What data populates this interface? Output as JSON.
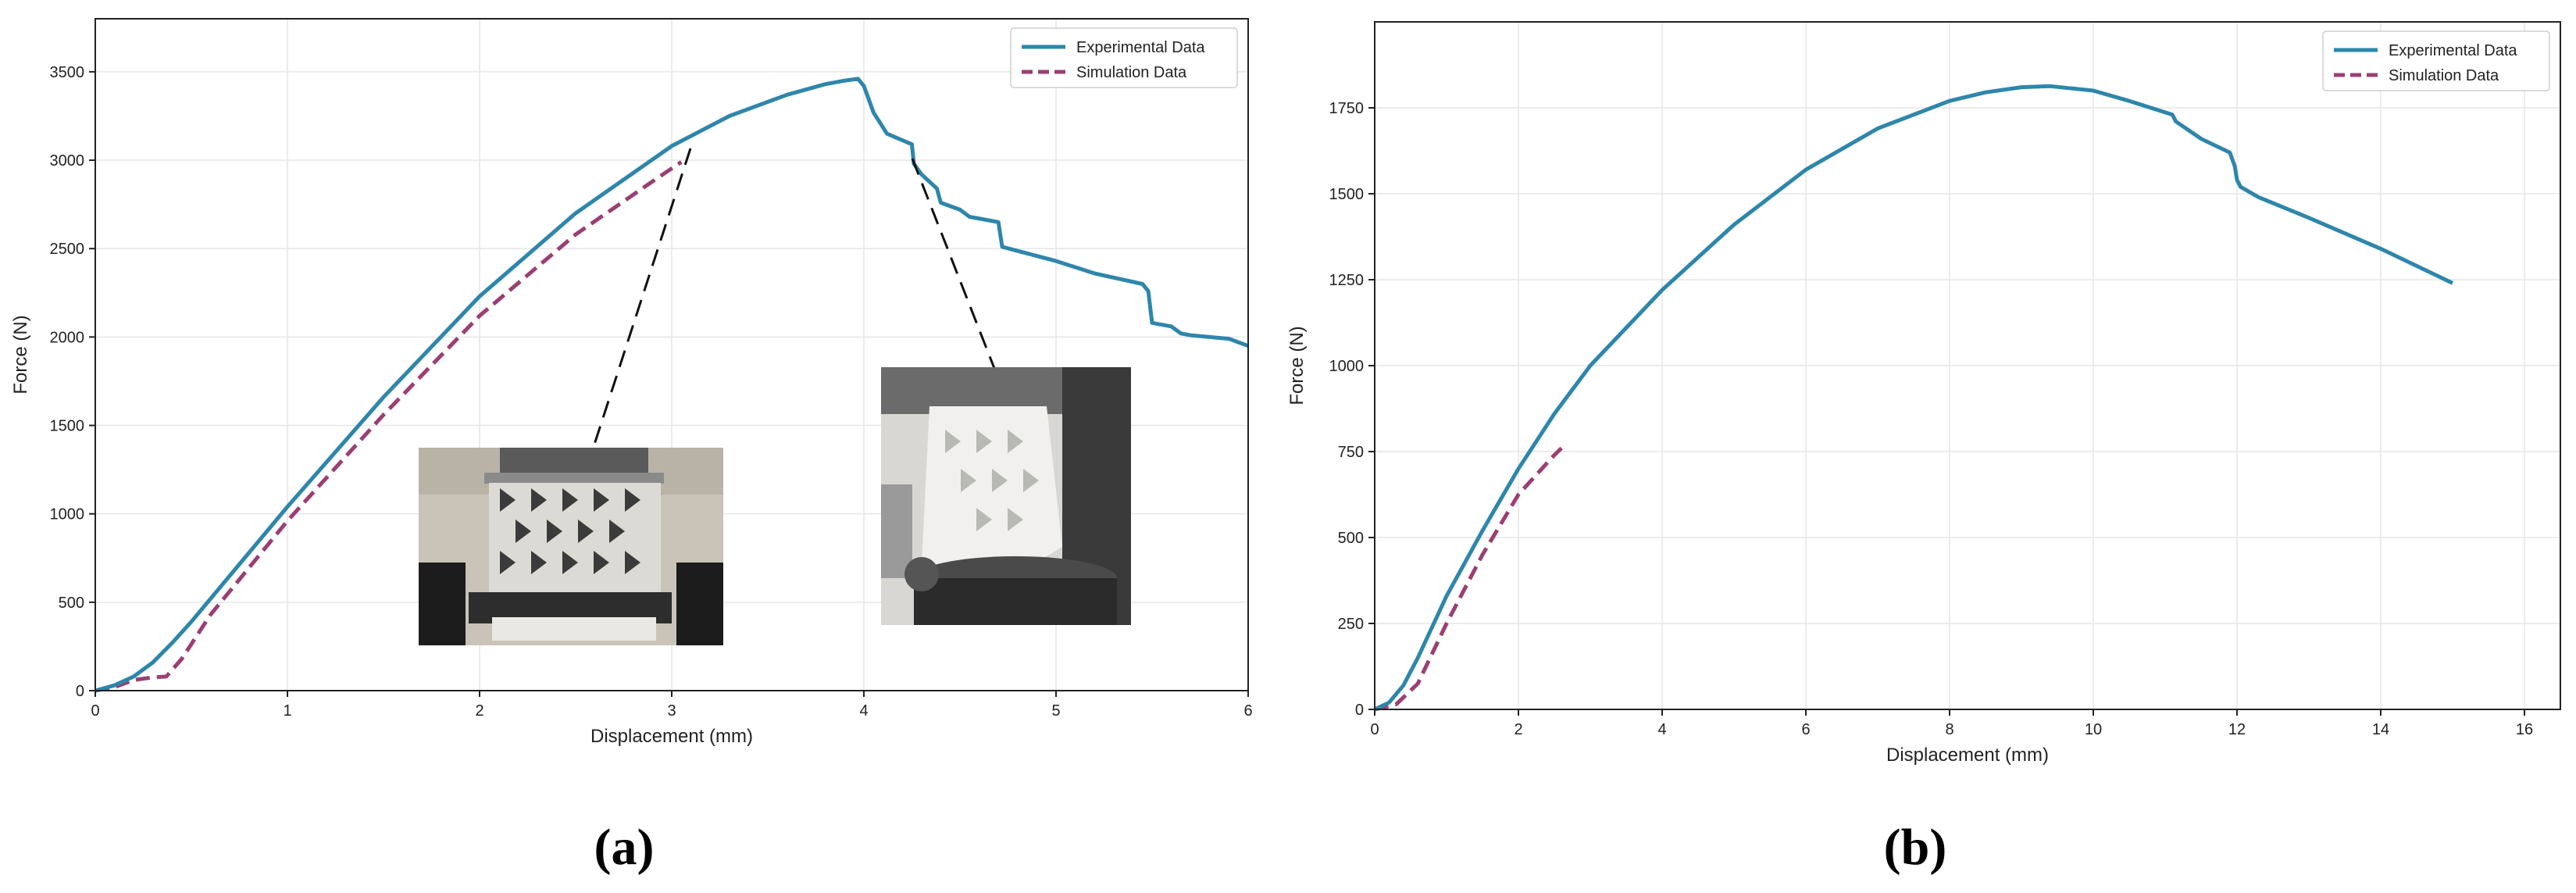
{
  "chart_data": [
    {
      "type": "line",
      "panel_label": "(a)",
      "xlabel": "Displacement (mm)",
      "ylabel": "Force (N)",
      "xlim": [
        0,
        6
      ],
      "ylim": [
        0,
        3800
      ],
      "xticks": [
        0,
        1,
        2,
        3,
        4,
        5,
        6
      ],
      "yticks": [
        0,
        500,
        1000,
        1500,
        2000,
        2500,
        3000,
        3500
      ],
      "grid": true,
      "legend": "top-right",
      "series": [
        {
          "name": "Experimental Data",
          "color": "#2e86ab",
          "dash": "solid",
          "x": [
            0,
            0.1,
            0.2,
            0.3,
            0.4,
            0.5,
            0.7,
            1.0,
            1.5,
            2.0,
            2.5,
            3.0,
            3.3,
            3.6,
            3.8,
            3.9,
            3.97,
            4.0,
            4.05,
            4.12,
            4.25,
            4.26,
            4.3,
            4.38,
            4.4,
            4.5,
            4.55,
            4.7,
            4.72,
            5.0,
            5.2,
            5.45,
            5.48,
            5.5,
            5.6,
            5.65,
            5.7,
            5.9,
            6.0
          ],
          "y": [
            0,
            30,
            80,
            160,
            270,
            390,
            650,
            1040,
            1660,
            2230,
            2700,
            3080,
            3250,
            3370,
            3430,
            3450,
            3460,
            3420,
            3270,
            3150,
            3090,
            2980,
            2920,
            2840,
            2760,
            2720,
            2680,
            2650,
            2510,
            2430,
            2360,
            2300,
            2260,
            2080,
            2060,
            2020,
            2010,
            1990,
            1950
          ]
        },
        {
          "name": "Simulation Data",
          "color": "#9b3f73",
          "dash": "dashed",
          "x": [
            0,
            0.1,
            0.2,
            0.3,
            0.37,
            0.45,
            0.6,
            1.0,
            1.5,
            2.0,
            2.5,
            2.9,
            3.05
          ],
          "y": [
            0,
            20,
            60,
            75,
            80,
            180,
            430,
            960,
            1560,
            2120,
            2580,
            2880,
            2990
          ]
        }
      ]
    },
    {
      "type": "line",
      "panel_label": "(b)",
      "xlabel": "Displacement (mm)",
      "ylabel": "Force (N)",
      "xlim": [
        0,
        16.5
      ],
      "ylim": [
        0,
        2000
      ],
      "xticks": [
        0,
        2,
        4,
        6,
        8,
        10,
        12,
        14,
        16
      ],
      "yticks": [
        0,
        250,
        500,
        750,
        1000,
        1250,
        1500,
        1750
      ],
      "grid": true,
      "legend": "top-right",
      "series": [
        {
          "name": "Experimental Data",
          "color": "#2e86ab",
          "dash": "solid",
          "x": [
            0,
            0.2,
            0.4,
            0.6,
            1.0,
            1.5,
            2.0,
            2.5,
            3.0,
            4.0,
            5.0,
            6.0,
            7.0,
            8.0,
            8.5,
            9.0,
            9.4,
            10.0,
            10.5,
            11.1,
            11.15,
            11.5,
            11.9,
            11.97,
            12.0,
            12.05,
            12.3,
            13.0,
            14.0,
            15.0
          ],
          "y": [
            0,
            20,
            70,
            150,
            330,
            520,
            700,
            860,
            1000,
            1220,
            1410,
            1570,
            1690,
            1770,
            1795,
            1810,
            1813,
            1800,
            1770,
            1730,
            1710,
            1660,
            1620,
            1580,
            1540,
            1520,
            1490,
            1430,
            1340,
            1240
          ]
        },
        {
          "name": "Simulation Data",
          "color": "#9b3f73",
          "dash": "dashed",
          "x": [
            0,
            0.3,
            0.6,
            1.0,
            1.5,
            2.0,
            2.5,
            2.6
          ],
          "y": [
            0,
            15,
            75,
            250,
            450,
            625,
            740,
            760
          ]
        }
      ]
    }
  ],
  "insets": [
    {
      "name": "specimen-photo-early",
      "caption": ""
    },
    {
      "name": "specimen-photo-failure",
      "caption": ""
    }
  ]
}
